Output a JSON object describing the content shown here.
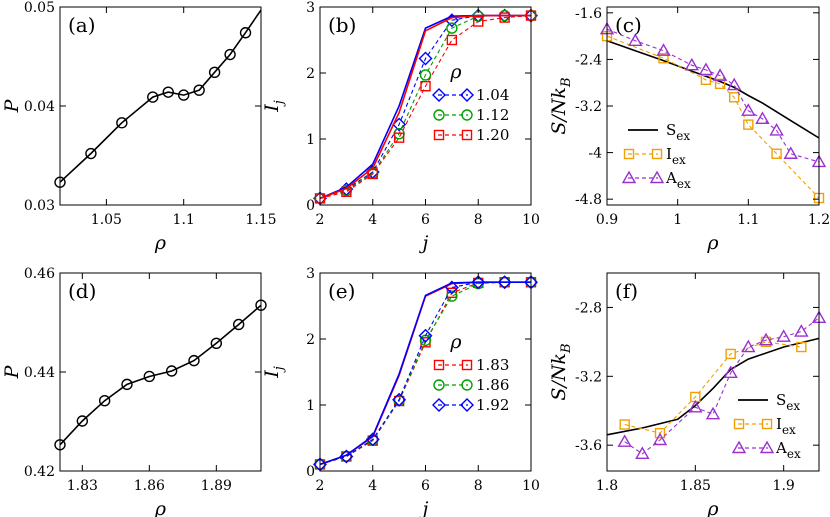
{
  "chart_data": [
    {
      "id": "a",
      "type": "line",
      "panel_label": "(a)",
      "xlabel": "ρ",
      "ylabel": "P",
      "xlim": [
        1.02,
        1.15
      ],
      "ylim": [
        0.03,
        0.05
      ],
      "xticks": [
        1.05,
        1.1,
        1.15
      ],
      "xtick_labels": [
        "1.05",
        "1.1",
        "1.15"
      ],
      "yticks": [
        0.03,
        0.04,
        0.05
      ],
      "ytick_labels": [
        "0.03",
        "0.04",
        "0.05"
      ],
      "series": [
        {
          "name": "P",
          "color": "#000000",
          "marker": "circle",
          "dash": "solid",
          "x": [
            1.02,
            1.04,
            1.06,
            1.08,
            1.09,
            1.1,
            1.11,
            1.12,
            1.13,
            1.14,
            1.15
          ],
          "y": [
            0.0323,
            0.0352,
            0.0383,
            0.0409,
            0.0414,
            0.0411,
            0.0416,
            0.0434,
            0.0452,
            0.0474,
            0.0497
          ],
          "marker_mask": [
            1,
            1,
            1,
            1,
            1,
            1,
            1,
            1,
            1,
            1,
            0
          ]
        }
      ]
    },
    {
      "id": "b",
      "type": "line",
      "panel_label": "(b)",
      "xlabel": "j",
      "ylabel": "I",
      "ylabel_sub": "j",
      "xlim": [
        2,
        10
      ],
      "ylim": [
        0,
        3
      ],
      "xticks": [
        2,
        4,
        6,
        8,
        10
      ],
      "xtick_labels": [
        "2",
        "4",
        "6",
        "8",
        "10"
      ],
      "yticks": [
        0,
        1,
        2,
        3
      ],
      "ytick_labels": [
        "0",
        "1",
        "2",
        "3"
      ],
      "legend_title": "ρ",
      "legend_position": "bottom-right",
      "series": [
        {
          "name": "1.04",
          "color": "#0000ff",
          "marker": "diamond",
          "dash": "dashed",
          "x": [
            2,
            3,
            4,
            5,
            6,
            7,
            8,
            9,
            10
          ],
          "y": [
            0.1,
            0.24,
            0.5,
            1.22,
            2.22,
            2.8,
            2.87,
            2.87,
            2.87
          ]
        },
        {
          "name": "1.12",
          "color": "#00a000",
          "marker": "circle",
          "dash": "dashed",
          "x": [
            2,
            3,
            4,
            5,
            6,
            7,
            8,
            9,
            10
          ],
          "y": [
            0.1,
            0.22,
            0.48,
            1.08,
            1.97,
            2.68,
            2.86,
            2.87,
            2.87
          ]
        },
        {
          "name": "1.20",
          "color": "#ff0000",
          "marker": "square",
          "dash": "dashed",
          "x": [
            2,
            3,
            4,
            5,
            6,
            7,
            8,
            9,
            10
          ],
          "y": [
            0.1,
            0.2,
            0.47,
            1.02,
            1.8,
            2.5,
            2.78,
            2.84,
            2.87
          ]
        },
        {
          "name": "1.04 solid",
          "color": "#0000ff",
          "marker": "none",
          "dash": "solid",
          "in_legend": false,
          "x": [
            2,
            3,
            4,
            5,
            6,
            7,
            8,
            9,
            10
          ],
          "y": [
            0.1,
            0.27,
            0.62,
            1.5,
            2.68,
            2.86,
            2.87,
            2.87,
            2.87
          ]
        },
        {
          "name": "1.20 solid",
          "color": "#ff0000",
          "marker": "none",
          "dash": "solid",
          "in_legend": false,
          "x": [
            2,
            3,
            4,
            5,
            6,
            7,
            8,
            9,
            10
          ],
          "y": [
            0.1,
            0.25,
            0.56,
            1.4,
            2.64,
            2.84,
            2.87,
            2.87,
            2.87
          ]
        }
      ]
    },
    {
      "id": "c",
      "type": "line",
      "panel_label": "(c)",
      "xlabel": "ρ",
      "ylabel": "S/Nk",
      "ylabel_sub": "B",
      "xlim": [
        0.9,
        1.2
      ],
      "ylim": [
        -4.9,
        -1.5
      ],
      "xticks": [
        0.9,
        1.0,
        1.1,
        1.2
      ],
      "xtick_labels": [
        "0.9",
        "1",
        "1.1",
        "1.2"
      ],
      "yticks": [
        -4.8,
        -4.0,
        -3.2,
        -2.4,
        -1.6
      ],
      "ytick_labels": [
        "-4.8",
        "-4",
        "-3.2",
        "-2.4",
        "-1.6"
      ],
      "legend_position": "bottom-left",
      "series": [
        {
          "name": "S",
          "sub": "ex",
          "color": "#000000",
          "marker": "none",
          "dash": "solid",
          "x": [
            0.9,
            0.94,
            0.98,
            1.02,
            1.06,
            1.08,
            1.1,
            1.12,
            1.14,
            1.16,
            1.18,
            1.2
          ],
          "y": [
            -2.08,
            -2.25,
            -2.42,
            -2.6,
            -2.78,
            -2.88,
            -3.02,
            -3.15,
            -3.3,
            -3.45,
            -3.6,
            -3.75
          ]
        },
        {
          "name": "I",
          "sub": "ex",
          "color": "#f0a000",
          "marker": "square",
          "dash": "dashed",
          "x": [
            0.9,
            0.98,
            1.04,
            1.06,
            1.08,
            1.1,
            1.14,
            1.2
          ],
          "y": [
            -2.0,
            -2.38,
            -2.75,
            -2.82,
            -3.05,
            -3.52,
            -4.02,
            -4.78
          ]
        },
        {
          "name": "A",
          "sub": "ex",
          "color": "#9b30d0",
          "marker": "triangle",
          "dash": "dashed",
          "x": [
            0.9,
            0.94,
            0.98,
            1.02,
            1.04,
            1.06,
            1.08,
            1.1,
            1.12,
            1.14,
            1.16,
            1.2
          ],
          "y": [
            -1.88,
            -2.08,
            -2.25,
            -2.5,
            -2.58,
            -2.68,
            -2.84,
            -3.28,
            -3.42,
            -3.62,
            -4.02,
            -4.16
          ]
        }
      ]
    },
    {
      "id": "d",
      "type": "line",
      "panel_label": "(d)",
      "xlabel": "ρ",
      "ylabel": "P",
      "xlim": [
        1.82,
        1.91
      ],
      "ylim": [
        0.42,
        0.46
      ],
      "xticks": [
        1.83,
        1.86,
        1.89
      ],
      "xtick_labels": [
        "1.83",
        "1.86",
        "1.89"
      ],
      "yticks": [
        0.42,
        0.44,
        0.46
      ],
      "ytick_labels": [
        "0.42",
        "0.44",
        "0.46"
      ],
      "series": [
        {
          "name": "P",
          "color": "#000000",
          "marker": "circle",
          "dash": "solid",
          "x": [
            1.82,
            1.83,
            1.84,
            1.85,
            1.86,
            1.87,
            1.88,
            1.89,
            1.9,
            1.91
          ],
          "y": [
            0.4253,
            0.4301,
            0.4342,
            0.4375,
            0.4391,
            0.4402,
            0.4423,
            0.4458,
            0.4496,
            0.4535
          ]
        }
      ]
    },
    {
      "id": "e",
      "type": "line",
      "panel_label": "(e)",
      "xlabel": "j",
      "ylabel": "I",
      "ylabel_sub": "j",
      "xlim": [
        2,
        10
      ],
      "ylim": [
        0,
        3
      ],
      "xticks": [
        2,
        4,
        6,
        8,
        10
      ],
      "xtick_labels": [
        "2",
        "4",
        "6",
        "8",
        "10"
      ],
      "yticks": [
        0,
        1,
        2,
        3
      ],
      "ytick_labels": [
        "0",
        "1",
        "2",
        "3"
      ],
      "legend_title": "ρ",
      "legend_position": "bottom-right",
      "series": [
        {
          "name": "1.83",
          "color": "#ff0000",
          "marker": "square",
          "dash": "dashed",
          "x": [
            2,
            3,
            4,
            5,
            6,
            7,
            8,
            9,
            10
          ],
          "y": [
            0.1,
            0.22,
            0.46,
            1.06,
            1.95,
            2.7,
            2.85,
            2.86,
            2.86
          ]
        },
        {
          "name": "1.86",
          "color": "#00a000",
          "marker": "circle",
          "dash": "dashed",
          "x": [
            2,
            3,
            4,
            5,
            6,
            7,
            8,
            9,
            10
          ],
          "y": [
            0.1,
            0.22,
            0.47,
            1.07,
            1.98,
            2.65,
            2.84,
            2.86,
            2.86
          ]
        },
        {
          "name": "1.92",
          "color": "#0000ff",
          "marker": "diamond",
          "dash": "dashed",
          "x": [
            2,
            3,
            4,
            5,
            6,
            7,
            8,
            9,
            10
          ],
          "y": [
            0.1,
            0.22,
            0.48,
            1.08,
            2.05,
            2.78,
            2.86,
            2.86,
            2.86
          ]
        },
        {
          "name": "1.83 solid",
          "color": "#ff0000",
          "marker": "none",
          "dash": "solid",
          "in_legend": false,
          "x": [
            2,
            3,
            4,
            5,
            6,
            7,
            8,
            9,
            10
          ],
          "y": [
            0.1,
            0.24,
            0.52,
            1.45,
            2.65,
            2.84,
            2.86,
            2.86,
            2.86
          ]
        },
        {
          "name": "1.92 solid",
          "color": "#0000ff",
          "marker": "none",
          "dash": "solid",
          "in_legend": false,
          "x": [
            2,
            3,
            4,
            5,
            6,
            7,
            8,
            9,
            10
          ],
          "y": [
            0.1,
            0.24,
            0.53,
            1.47,
            2.66,
            2.85,
            2.86,
            2.86,
            2.86
          ]
        }
      ]
    },
    {
      "id": "f",
      "type": "line",
      "panel_label": "(f)",
      "xlabel": "ρ",
      "ylabel": "S/Nk",
      "ylabel_sub": "B",
      "xlim": [
        1.8,
        1.92
      ],
      "ylim": [
        -3.75,
        -2.6
      ],
      "xticks": [
        1.8,
        1.85,
        1.9
      ],
      "xtick_labels": [
        "1.8",
        "1.85",
        "1.9"
      ],
      "yticks": [
        -3.6,
        -3.2,
        -2.8
      ],
      "ytick_labels": [
        "-3.6",
        "-3.2",
        "-2.8"
      ],
      "legend_position": "bottom-right",
      "series": [
        {
          "name": "S",
          "sub": "ex",
          "color": "#000000",
          "marker": "none",
          "dash": "solid",
          "x": [
            1.8,
            1.82,
            1.84,
            1.85,
            1.86,
            1.87,
            1.88,
            1.9,
            1.92
          ],
          "y": [
            -3.54,
            -3.5,
            -3.45,
            -3.37,
            -3.27,
            -3.16,
            -3.1,
            -3.03,
            -2.98
          ]
        },
        {
          "name": "I",
          "sub": "ex",
          "color": "#f0a000",
          "marker": "square",
          "dash": "dashed",
          "x": [
            1.81,
            1.83,
            1.85,
            1.87,
            1.89,
            1.91
          ],
          "y": [
            -3.48,
            -3.53,
            -3.32,
            -3.07,
            -3.0,
            -3.03
          ]
        },
        {
          "name": "A",
          "sub": "ex",
          "color": "#9b30d0",
          "marker": "triangle",
          "dash": "dashed",
          "x": [
            1.81,
            1.82,
            1.83,
            1.85,
            1.86,
            1.87,
            1.88,
            1.89,
            1.9,
            1.91,
            1.92
          ],
          "y": [
            -3.58,
            -3.65,
            -3.57,
            -3.38,
            -3.42,
            -3.18,
            -3.03,
            -2.99,
            -2.97,
            -2.94,
            -2.86
          ]
        }
      ]
    }
  ]
}
